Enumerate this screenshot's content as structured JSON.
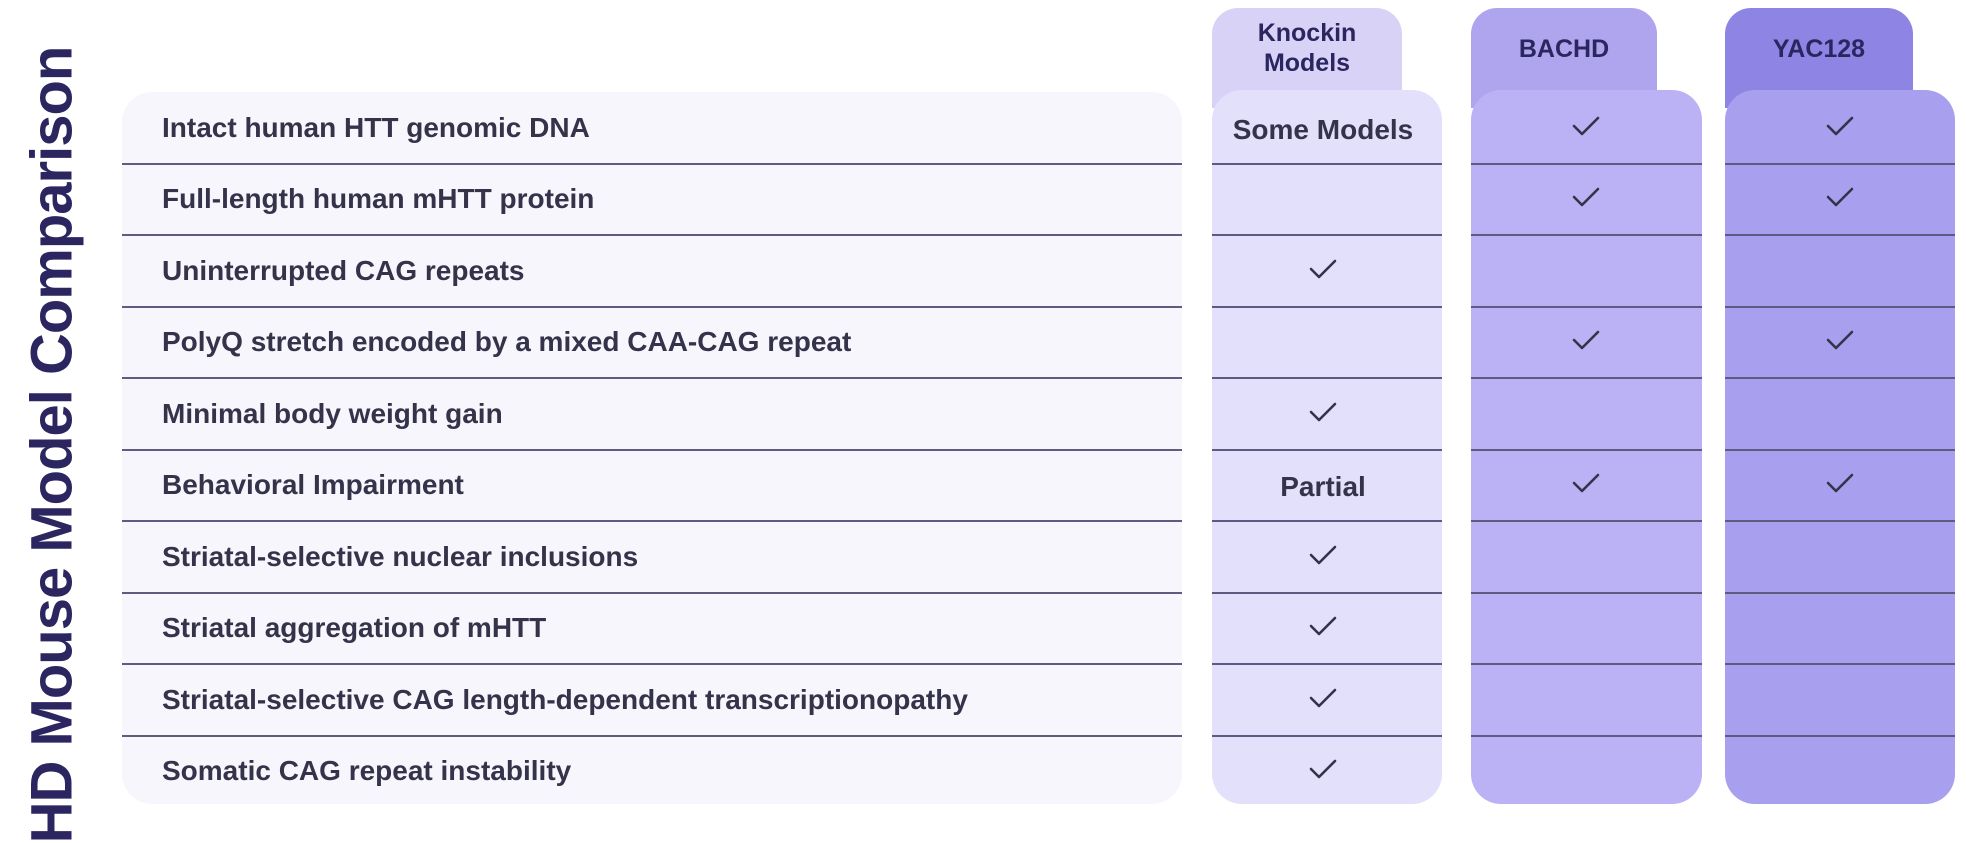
{
  "title": "HD Mouse Model Comparison",
  "columns": [
    {
      "id": "knockin",
      "label_lines": [
        "Knockin",
        "Models"
      ],
      "colors": {
        "tab": "#d7d2f6",
        "body": "#e3e0fb"
      }
    },
    {
      "id": "bachd",
      "label_lines": [
        "BACHD"
      ],
      "colors": {
        "tab": "#aea5ee",
        "body": "#bab2f4"
      }
    },
    {
      "id": "yac128",
      "label_lines": [
        "YAC128"
      ],
      "colors": {
        "tab": "#8d84e4",
        "body": "#a89fef"
      }
    }
  ],
  "check_icon": "checkmark-icon",
  "rows": [
    {
      "label": "Intact human HTT genomic DNA",
      "cells": [
        {
          "text": "Some Models"
        },
        {
          "check": true
        },
        {
          "check": true
        }
      ]
    },
    {
      "label": "Full-length human mHTT protein",
      "cells": [
        {},
        {
          "check": true
        },
        {
          "check": true
        }
      ]
    },
    {
      "label": "Uninterrupted CAG repeats",
      "cells": [
        {
          "check": true
        },
        {},
        {}
      ]
    },
    {
      "label": "PolyQ stretch encoded by a mixed CAA-CAG repeat",
      "cells": [
        {},
        {
          "check": true
        },
        {
          "check": true
        }
      ]
    },
    {
      "label": "Minimal body weight gain",
      "cells": [
        {
          "check": true
        },
        {},
        {}
      ]
    },
    {
      "label": "Behavioral Impairment",
      "cells": [
        {
          "text": "Partial"
        },
        {
          "check": true
        },
        {
          "check": true
        }
      ]
    },
    {
      "label": "Striatal-selective nuclear inclusions",
      "cells": [
        {
          "check": true
        },
        {},
        {}
      ]
    },
    {
      "label": "Striatal aggregation of mHTT",
      "cells": [
        {
          "check": true
        },
        {},
        {}
      ]
    },
    {
      "label": "Striatal-selective CAG length-dependent transcriptionopathy",
      "cells": [
        {
          "check": true
        },
        {},
        {}
      ]
    },
    {
      "label": "Somatic CAG repeat instability",
      "cells": [
        {
          "check": true
        },
        {},
        {}
      ]
    }
  ]
}
